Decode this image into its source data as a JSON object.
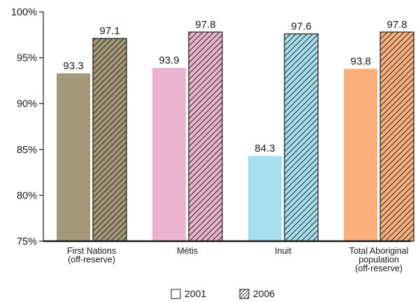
{
  "chart_data": {
    "type": "bar",
    "categories": [
      [
        "First Nations",
        "(off-reserve)"
      ],
      [
        "Métis"
      ],
      [
        "Inuit"
      ],
      [
        "Total Aboriginal",
        "population",
        "(off-reserve)"
      ]
    ],
    "series": [
      {
        "name": "2001",
        "values": [
          93.3,
          93.9,
          84.3,
          93.8
        ],
        "labels": [
          "93.3",
          "93.9",
          "84.3",
          "93.8"
        ],
        "pattern": "solid"
      },
      {
        "name": "2006",
        "values": [
          97.1,
          97.8,
          97.6,
          97.8
        ],
        "labels": [
          "97.1",
          "97.8",
          "97.6",
          "97.8"
        ],
        "pattern": "hatched"
      }
    ],
    "category_colors": [
      "#a39877",
      "#ecb3d0",
      "#a6dff0",
      "#fbb07c"
    ],
    "ylim": [
      75,
      100
    ],
    "yticks": [
      75,
      80,
      85,
      90,
      95,
      100
    ],
    "ytick_labels": [
      "75%",
      "80%",
      "85%",
      "90%",
      "95%",
      "100%"
    ],
    "grid": false,
    "legend_position": "bottom-center"
  }
}
